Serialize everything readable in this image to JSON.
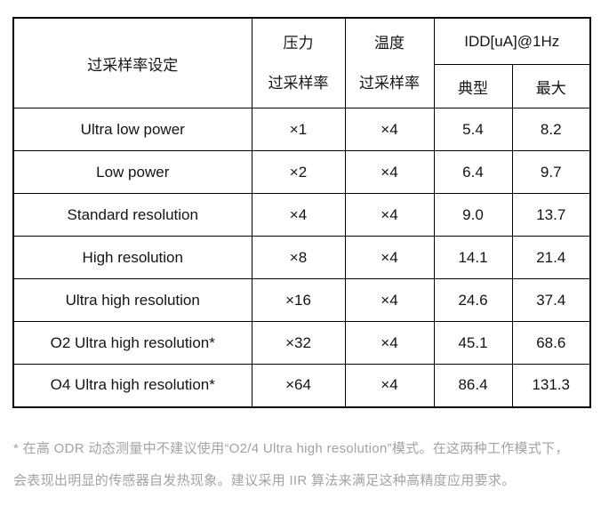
{
  "table": {
    "headers": {
      "settings": "过采样率设定",
      "pressure_line1": "压力",
      "pressure_line2": "过采样率",
      "temperature_line1": "温度",
      "temperature_line2": "过采样率",
      "idd": "IDD[uA]@1Hz",
      "typical": "典型",
      "max": "最大"
    },
    "rows": [
      {
        "setting": "Ultra low power",
        "pressure": "×1",
        "temperature": "×4",
        "typical": "5.4",
        "max": "8.2"
      },
      {
        "setting": "Low power",
        "pressure": "×2",
        "temperature": "×4",
        "typical": "6.4",
        "max": "9.7"
      },
      {
        "setting": "Standard resolution",
        "pressure": "×4",
        "temperature": "×4",
        "typical": "9.0",
        "max": "13.7"
      },
      {
        "setting": "High resolution",
        "pressure": "×8",
        "temperature": "×4",
        "typical": "14.1",
        "max": "21.4"
      },
      {
        "setting": "Ultra high resolution",
        "pressure": "×16",
        "temperature": "×4",
        "typical": "24.6",
        "max": "37.4"
      },
      {
        "setting": "O2 Ultra high resolution*",
        "pressure": "×32",
        "temperature": "×4",
        "typical": "45.1",
        "max": "68.6"
      },
      {
        "setting": "O4 Ultra high resolution*",
        "pressure": "×64",
        "temperature": "×4",
        "typical": "86.4",
        "max": "131.3"
      }
    ]
  },
  "footnote": {
    "line1": "* 在高 ODR 动态测量中不建议使用“O2/4 Ultra high resolution”模式。在这两种工作模式下，",
    "line2": "会表现出明显的传感器自发热现象。建议采用 IIR 算法来满足这种高精度应用要求。"
  },
  "colors": {
    "background": "#ffffff",
    "table_border": "#000000",
    "table_text": "#141414",
    "footnote_text": "#a3a3a3"
  }
}
